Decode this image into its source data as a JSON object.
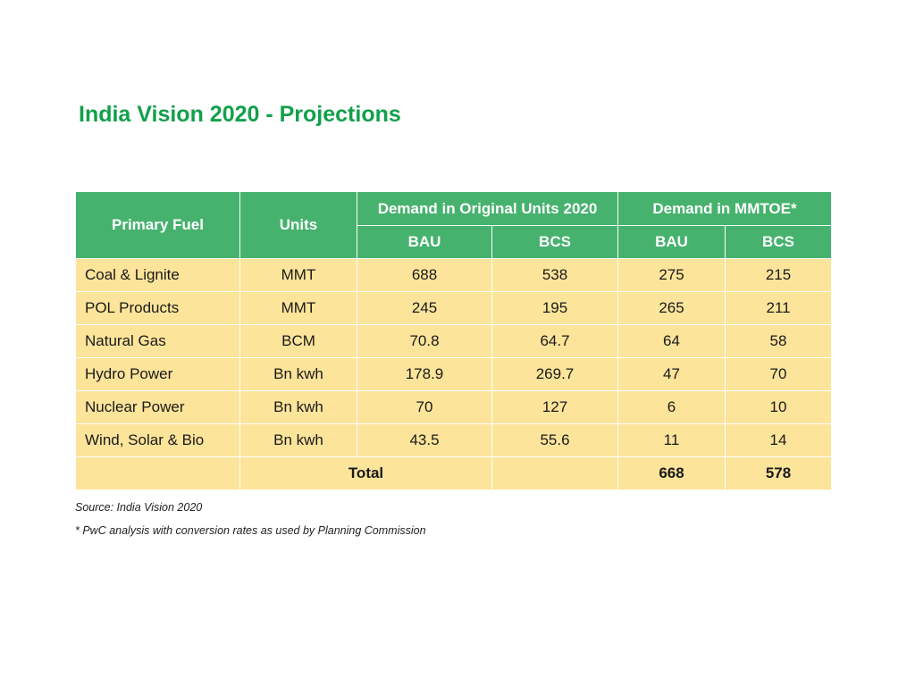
{
  "title": "India Vision 2020 - Projections",
  "table": {
    "header": {
      "primary_fuel": "Primary Fuel",
      "units": "Units",
      "group_original": "Demand in Original Units 2020",
      "group_mmtoe": "Demand in MMTOE*",
      "bau_1": "BAU",
      "bcs_1": "BCS",
      "bau_2": "BAU",
      "bcs_2": "BCS"
    },
    "rows": [
      {
        "fuel": "Coal & Lignite",
        "units": "MMT",
        "orig_bau": "688",
        "orig_bcs": "538",
        "mmtoe_bau": "275",
        "mmtoe_bcs": "215"
      },
      {
        "fuel": "POL Products",
        "units": "MMT",
        "orig_bau": "245",
        "orig_bcs": "195",
        "mmtoe_bau": "265",
        "mmtoe_bcs": "211"
      },
      {
        "fuel": "Natural Gas",
        "units": "BCM",
        "orig_bau": "70.8",
        "orig_bcs": "64.7",
        "mmtoe_bau": "64",
        "mmtoe_bcs": "58"
      },
      {
        "fuel": "Hydro Power",
        "units": "Bn kwh",
        "orig_bau": "178.9",
        "orig_bcs": "269.7",
        "mmtoe_bau": "47",
        "mmtoe_bcs": "70"
      },
      {
        "fuel": "Nuclear Power",
        "units": "Bn kwh",
        "orig_bau": "70",
        "orig_bcs": "127",
        "mmtoe_bau": "6",
        "mmtoe_bcs": "10"
      },
      {
        "fuel": "Wind, Solar & Bio",
        "units": "Bn kwh",
        "orig_bau": "43.5",
        "orig_bcs": "55.6",
        "mmtoe_bau": "11",
        "mmtoe_bcs": "14"
      }
    ],
    "total": {
      "label": "Total",
      "mmtoe_bau": "668",
      "mmtoe_bcs": "578"
    }
  },
  "footnotes": {
    "source": "Source: India Vision 2020",
    "note": "* PwC analysis with conversion rates as used by Planning Commission"
  },
  "colors": {
    "title": "#12a04a",
    "header_bg": "#46b26e",
    "cell_bg": "#fce49a"
  }
}
